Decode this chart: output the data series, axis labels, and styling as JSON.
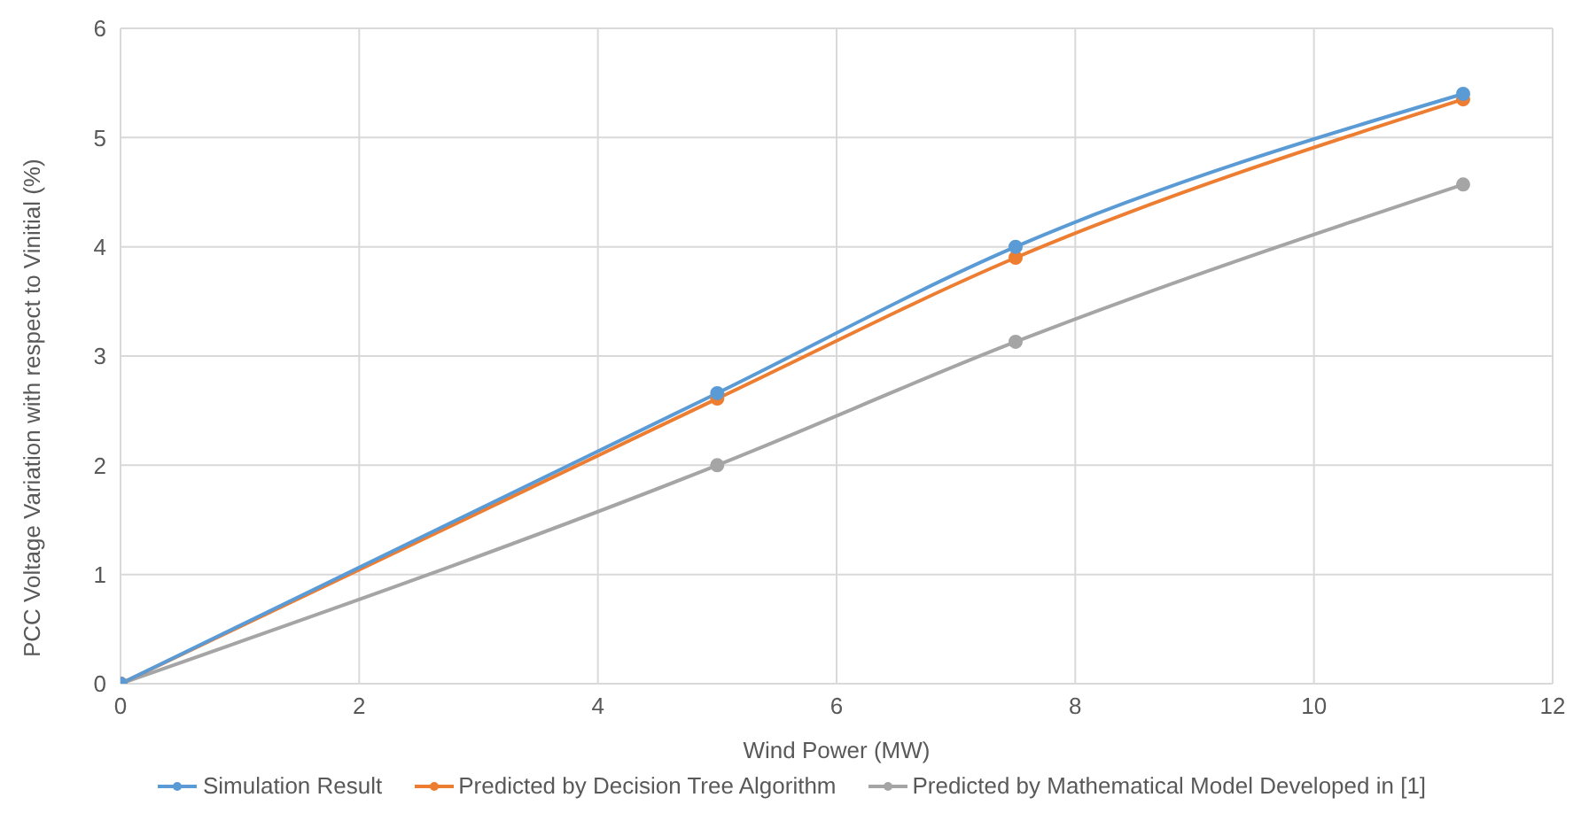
{
  "chart_data": {
    "type": "line",
    "xlabel": "Wind Power (MW)",
    "ylabel": "PCC Voltage Variation with respect to Vinitial (%)",
    "x": [
      0,
      5,
      7.5,
      11.25
    ],
    "series": [
      {
        "name": "Simulation Result",
        "color": "#5b9bd5",
        "values": [
          0,
          2.66,
          4.0,
          5.4
        ]
      },
      {
        "name": "Predicted by Decision Tree Algorithm",
        "color": "#ed7d31",
        "values": [
          0,
          2.61,
          3.9,
          5.35
        ]
      },
      {
        "name": "Predicted by Mathematical Model Developed in [1]",
        "color": "#a5a5a5",
        "values": [
          0,
          2.0,
          3.13,
          4.57
        ]
      }
    ],
    "xlim": [
      0,
      12
    ],
    "xticks": [
      0,
      2,
      4,
      6,
      8,
      10,
      12
    ],
    "ylim": [
      0,
      6
    ],
    "yticks": [
      0,
      1,
      2,
      3,
      4,
      5,
      6
    ],
    "grid": true,
    "legend": "bottom",
    "marker": "circle",
    "line_style": "solid"
  }
}
